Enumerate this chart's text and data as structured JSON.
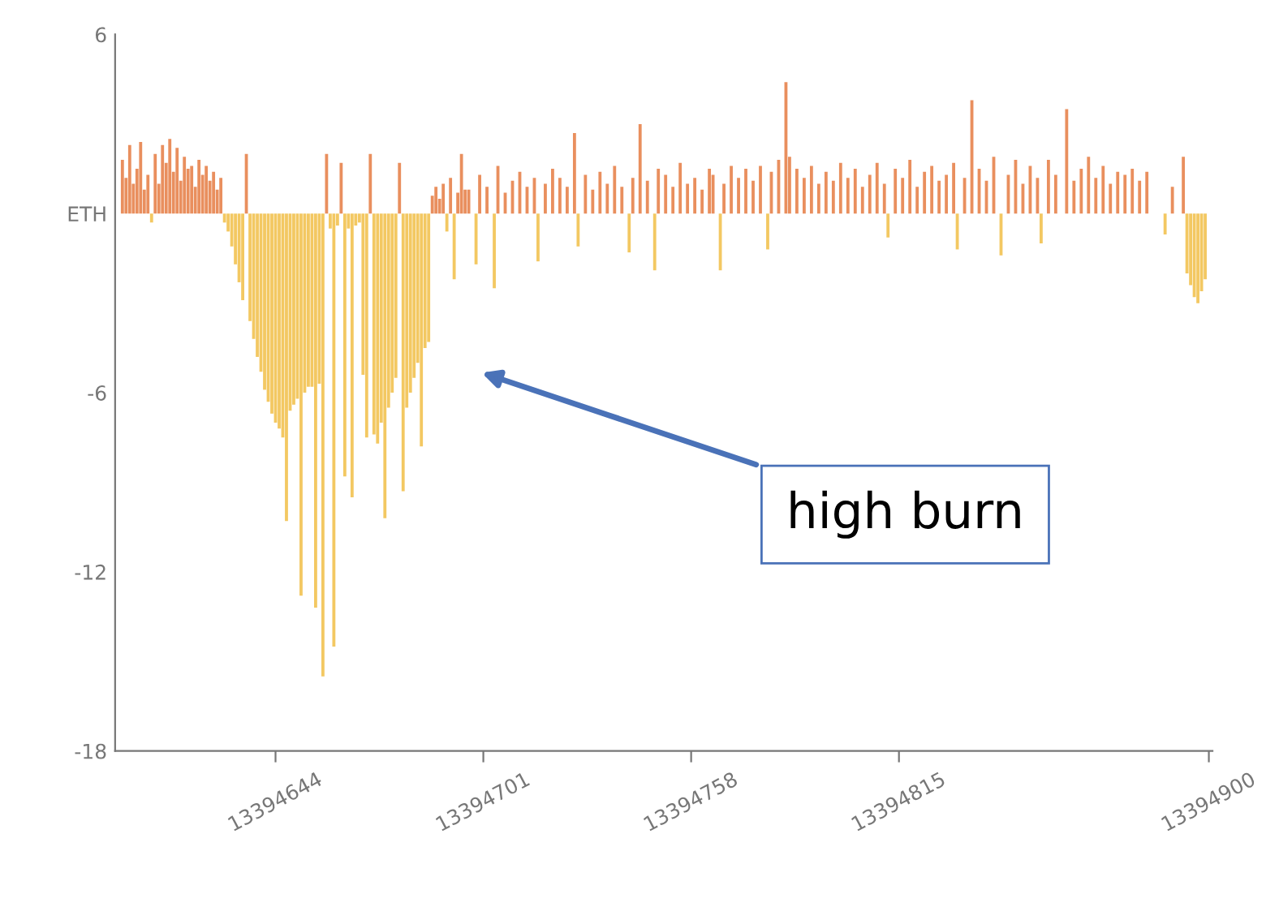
{
  "chart_data": {
    "type": "bar",
    "series": [
      {
        "color": "#e98f5e",
        "x": [
          13394602,
          13394603,
          13394604,
          13394605,
          13394606,
          13394607,
          13394608,
          13394609,
          13394611,
          13394612,
          13394613,
          13394614,
          13394615,
          13394616,
          13394617,
          13394618,
          13394619,
          13394620,
          13394621,
          13394622,
          13394623,
          13394624,
          13394625,
          13394626,
          13394627,
          13394628,
          13394629,
          13394636,
          13394658,
          13394662,
          13394670,
          13394678,
          13394687,
          13394688,
          13394689,
          13394690,
          13394692,
          13394694,
          13394695,
          13394696,
          13394697,
          13394700,
          13394702,
          13394705,
          13394707,
          13394709,
          13394711,
          13394713,
          13394715,
          13394718,
          13394720,
          13394722,
          13394724,
          13394726,
          13394729,
          13394731,
          13394733,
          13394735,
          13394737,
          13394739,
          13394742,
          13394744,
          13394746,
          13394749,
          13394751,
          13394753,
          13394755,
          13394757,
          13394759,
          13394761,
          13394763,
          13394764,
          13394767,
          13394769,
          13394771,
          13394773,
          13394775,
          13394777,
          13394780,
          13394782,
          13394784,
          13394785,
          13394787,
          13394789,
          13394791,
          13394793,
          13394795,
          13394797,
          13394799,
          13394801,
          13394803,
          13394805,
          13394807,
          13394809,
          13394811,
          13394814,
          13394816,
          13394818,
          13394820,
          13394822,
          13394824,
          13394826,
          13394828,
          13394830,
          13394833,
          13394835,
          13394837,
          13394839,
          13394841,
          13394845,
          13394847,
          13394849,
          13394851,
          13394853,
          13394856,
          13394858,
          13394861,
          13394863,
          13394865,
          13394867,
          13394869,
          13394871,
          13394873,
          13394875,
          13394877,
          13394879,
          13394881,
          13394883,
          13394890,
          13394893
        ],
        "values": [
          1.8,
          1.2,
          2.3,
          1.0,
          1.5,
          2.4,
          0.8,
          1.3,
          2.0,
          1.0,
          2.3,
          1.7,
          2.5,
          1.4,
          2.2,
          1.1,
          1.9,
          1.5,
          1.6,
          0.9,
          1.8,
          1.3,
          1.6,
          1.1,
          1.4,
          0.8,
          1.2,
          2.0,
          2.0,
          1.7,
          2.0,
          1.7,
          0.6,
          0.9,
          0.5,
          1.0,
          1.2,
          0.7,
          2.0,
          0.8,
          0.8,
          1.3,
          0.9,
          1.6,
          0.7,
          1.1,
          1.4,
          0.9,
          1.2,
          1.0,
          1.5,
          1.2,
          0.9,
          2.7,
          1.3,
          0.8,
          1.4,
          1.0,
          1.6,
          0.9,
          1.2,
          3.0,
          1.1,
          1.5,
          1.3,
          0.9,
          1.7,
          1.0,
          1.2,
          0.8,
          1.5,
          1.3,
          1.0,
          1.6,
          1.2,
          1.5,
          1.1,
          1.6,
          1.4,
          1.8,
          4.4,
          1.9,
          1.5,
          1.2,
          1.6,
          1.0,
          1.4,
          1.1,
          1.7,
          1.2,
          1.5,
          0.9,
          1.3,
          1.7,
          1.0,
          1.5,
          1.2,
          1.8,
          0.9,
          1.4,
          1.6,
          1.1,
          1.3,
          1.7,
          1.2,
          3.8,
          1.5,
          1.1,
          1.9,
          1.3,
          1.8,
          1.0,
          1.6,
          1.2,
          1.8,
          1.3,
          3.5,
          1.1,
          1.5,
          1.9,
          1.2,
          1.6,
          1.0,
          1.4,
          1.3,
          1.5,
          1.1,
          1.4,
          0.9,
          1.9
        ]
      },
      {
        "color": "#f3c862",
        "x": [
          13394610,
          13394630,
          13394631,
          13394632,
          13394633,
          13394634,
          13394635,
          13394637,
          13394638,
          13394639,
          13394640,
          13394641,
          13394642,
          13394643,
          13394644,
          13394645,
          13394646,
          13394647,
          13394648,
          13394649,
          13394650,
          13394651,
          13394652,
          13394653,
          13394654,
          13394655,
          13394656,
          13394657,
          13394659,
          13394660,
          13394661,
          13394663,
          13394664,
          13394665,
          13394666,
          13394667,
          13394668,
          13394669,
          13394671,
          13394672,
          13394673,
          13394674,
          13394675,
          13394676,
          13394677,
          13394679,
          13394680,
          13394681,
          13394682,
          13394683,
          13394684,
          13394685,
          13394686,
          13394691,
          13394693,
          13394699,
          13394704,
          13394716,
          13394727,
          13394741,
          13394748,
          13394766,
          13394779,
          13394812,
          13394831,
          13394843,
          13394854,
          13394888,
          13394894,
          13394895,
          13394896,
          13394897,
          13394898,
          13394899
        ],
        "values": [
          -0.3,
          -0.3,
          -0.6,
          -1.1,
          -1.7,
          -2.3,
          -2.9,
          -3.6,
          -4.2,
          -4.8,
          -5.3,
          -5.9,
          -6.3,
          -6.7,
          -7.0,
          -7.2,
          -7.5,
          -10.3,
          -6.6,
          -6.4,
          -6.2,
          -12.8,
          -6.0,
          -5.8,
          -5.8,
          -13.2,
          -5.7,
          -15.5,
          -0.5,
          -14.5,
          -0.4,
          -8.8,
          -0.5,
          -9.5,
          -0.4,
          -0.3,
          -5.4,
          -7.5,
          -7.4,
          -7.7,
          -7.0,
          -10.2,
          -6.5,
          -6.0,
          -5.5,
          -9.3,
          -6.5,
          -6.0,
          -5.5,
          -5.0,
          -7.8,
          -4.5,
          -4.3,
          -0.6,
          -2.2,
          -1.7,
          -2.5,
          -1.6,
          -1.1,
          -1.3,
          -1.9,
          -1.9,
          -1.2,
          -0.8,
          -1.2,
          -1.4,
          -1.0,
          -0.7,
          -2.0,
          -2.4,
          -2.8,
          -3.0,
          -2.6,
          -2.2
        ]
      }
    ],
    "xlim": [
      13394600,
      13394901
    ],
    "xticks": [
      13394644,
      13394701,
      13394758,
      13394815,
      13394900
    ],
    "ylim": [
      -18,
      6
    ],
    "yticks": [
      -18,
      -12,
      -6,
      {
        "value": 0,
        "label": "ETH"
      },
      6
    ],
    "annotations": [
      "high burn"
    ]
  }
}
